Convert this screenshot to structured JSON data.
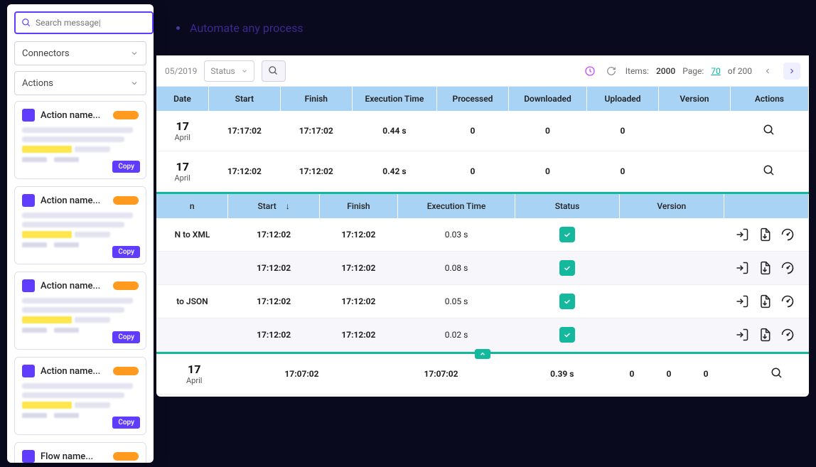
{
  "sidebar": {
    "search_placeholder": "Search message|",
    "dropdowns": {
      "connectors": "Connectors",
      "actions": "Actions"
    },
    "cards": [
      {
        "title": "Action name...",
        "copy": "Copy"
      },
      {
        "title": "Action name...",
        "copy": "Copy"
      },
      {
        "title": "Action name...",
        "copy": "Copy"
      },
      {
        "title": "Action name...",
        "copy": "Copy"
      },
      {
        "title": "Flow name..."
      }
    ]
  },
  "header_bullet": "Automate any process",
  "toolbar": {
    "date_fragment": "05/2019",
    "status_label": "Status",
    "items_label": "Items:",
    "items_value": "2000",
    "page_label": "Page:",
    "page_current": "70",
    "page_of": "of 200"
  },
  "outer_table": {
    "cols": [
      "Date",
      "Start",
      "Finish",
      "Execution Time",
      "Processed",
      "Downloaded",
      "Uploaded",
      "Version",
      "Actions"
    ],
    "rows_top": [
      {
        "day": "17",
        "month": "April",
        "start": "17:17:02",
        "finish": "17:17:02",
        "exec": "0.44 s",
        "processed": "0",
        "downloaded": "0",
        "uploaded": "0"
      },
      {
        "day": "17",
        "month": "April",
        "start": "17:12:02",
        "finish": "17:12:02",
        "exec": "0.42 s",
        "processed": "0",
        "downloaded": "0",
        "uploaded": "0"
      }
    ],
    "row_bottom": {
      "day": "17",
      "month": "April",
      "start": "17:07:02",
      "finish": "17:07:02",
      "exec": "0.39 s",
      "processed": "0",
      "downloaded": "0",
      "uploaded": "0"
    }
  },
  "inner_table": {
    "cols": [
      "n",
      "Start",
      "Finish",
      "Execution Time",
      "Status",
      "Version",
      ""
    ],
    "rows": [
      {
        "name": "N to XML",
        "start": "17:12:02",
        "finish": "17:12:02",
        "exec": "0.03 s"
      },
      {
        "name": "",
        "start": "17:12:02",
        "finish": "17:12:02",
        "exec": "0.08 s"
      },
      {
        "name": "to JSON",
        "start": "17:12:02",
        "finish": "17:12:02",
        "exec": "0.05 s"
      },
      {
        "name": "",
        "start": "17:12:02",
        "finish": "17:12:02",
        "exec": "0.02 s"
      }
    ]
  },
  "colors": {
    "accent": "#5f3cff",
    "teal": "#14b89c",
    "header_blue": "#a9d3f5",
    "pill": "#ff9a1f",
    "highlight": "#ffe64d"
  }
}
